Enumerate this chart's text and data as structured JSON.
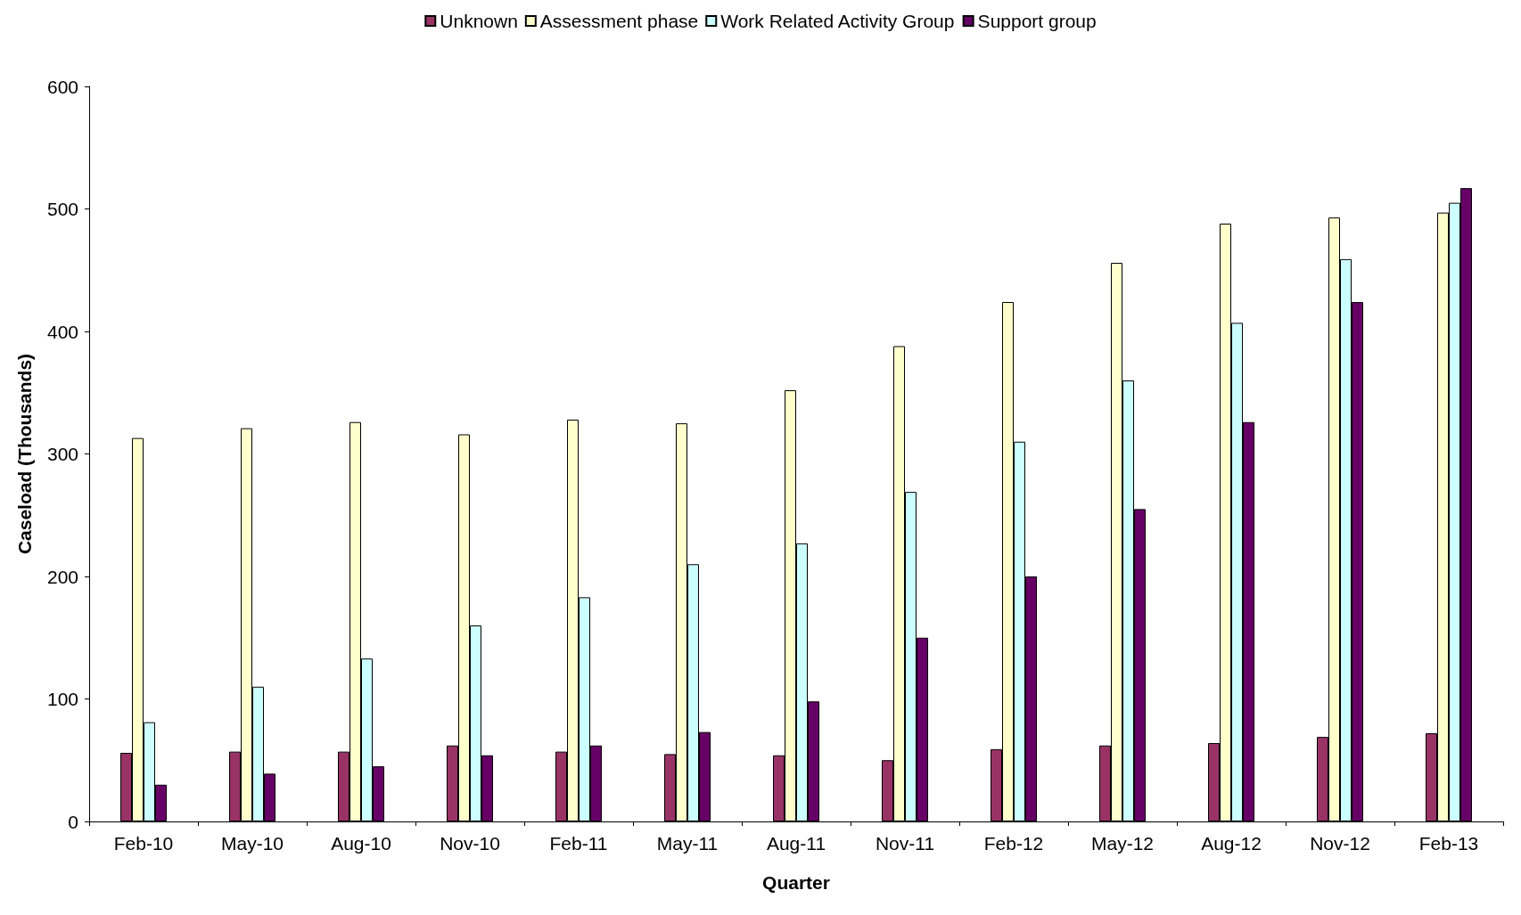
{
  "chart_data": {
    "type": "bar",
    "xlabel": "Quarter",
    "ylabel": "Caseload (Thousands)",
    "categories": [
      "Feb-10",
      "May-10",
      "Aug-10",
      "Nov-10",
      "Feb-11",
      "May-11",
      "Aug-11",
      "Nov-11",
      "Feb-12",
      "May-12",
      "Aug-12",
      "Nov-12",
      "Feb-13"
    ],
    "series": [
      {
        "name": "Unknown",
        "color": "#993366",
        "values": [
          56,
          57,
          57,
          62,
          57,
          55,
          54,
          50,
          59,
          62,
          64,
          69,
          72
        ]
      },
      {
        "name": "Assessment phase",
        "color": "#ffffcc",
        "values": [
          313,
          321,
          326,
          316,
          328,
          325,
          352,
          388,
          424,
          456,
          488,
          493,
          497
        ]
      },
      {
        "name": "Work Related Activity Group",
        "color": "#ccffff",
        "values": [
          81,
          110,
          133,
          160,
          183,
          210,
          227,
          269,
          310,
          360,
          407,
          459,
          505
        ]
      },
      {
        "name": "Support group",
        "color": "#660066",
        "values": [
          30,
          39,
          45,
          54,
          62,
          73,
          98,
          150,
          200,
          255,
          326,
          424,
          517
        ]
      }
    ],
    "ylim": [
      0,
      600
    ],
    "yticks": [
      0,
      100,
      200,
      300,
      400,
      500,
      600
    ],
    "grid": false,
    "legend": "top"
  }
}
